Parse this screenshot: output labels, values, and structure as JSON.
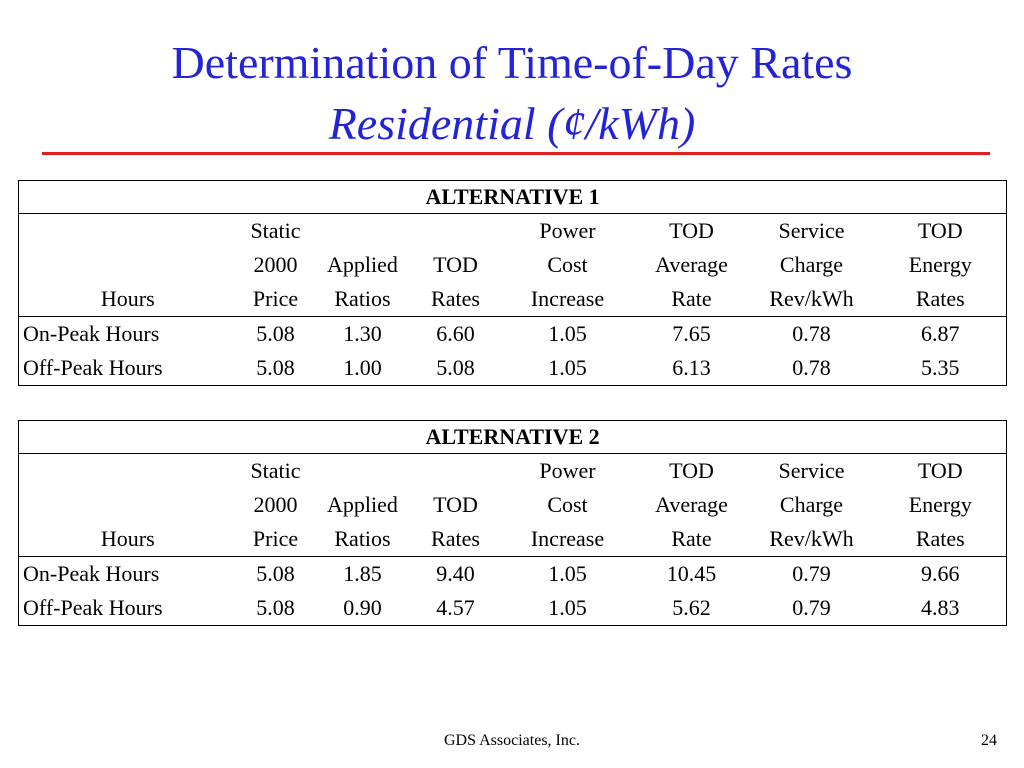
{
  "title": "Determination of Time-of-Day Rates",
  "subtitle": "Residential (¢/kWh)",
  "tables": [
    {
      "heading": "ALTERNATIVE 1",
      "header_rows": [
        [
          "",
          "Static",
          "",
          "",
          "Power",
          "TOD",
          "Service",
          "TOD"
        ],
        [
          "",
          "2000",
          "Applied",
          "TOD",
          "Cost",
          "Average",
          "Charge",
          "Energy"
        ],
        [
          "Hours",
          "Price",
          "Ratios",
          "Rates",
          "Increase",
          "Rate",
          "Rev/kWh",
          "Rates"
        ]
      ],
      "rows": [
        [
          "On-Peak Hours",
          "5.08",
          "1.30",
          "6.60",
          "1.05",
          "7.65",
          "0.78",
          "6.87"
        ],
        [
          "Off-Peak Hours",
          "5.08",
          "1.00",
          "5.08",
          "1.05",
          "6.13",
          "0.78",
          "5.35"
        ]
      ]
    },
    {
      "heading": "ALTERNATIVE 2",
      "header_rows": [
        [
          "",
          "Static",
          "",
          "",
          "Power",
          "TOD",
          "Service",
          "TOD"
        ],
        [
          "",
          "2000",
          "Applied",
          "TOD",
          "Cost",
          "Average",
          "Charge",
          "Energy"
        ],
        [
          "Hours",
          "Price",
          "Ratios",
          "Rates",
          "Increase",
          "Rate",
          "Rev/kWh",
          "Rates"
        ]
      ],
      "rows": [
        [
          "On-Peak Hours",
          "5.08",
          "1.85",
          "9.40",
          "1.05",
          "10.45",
          "0.79",
          "9.66"
        ],
        [
          "Off-Peak Hours",
          "5.08",
          "0.90",
          "4.57",
          "1.05",
          "5.62",
          "0.79",
          "4.83"
        ]
      ]
    }
  ],
  "footer": "GDS Associates, Inc.",
  "page_number": "24",
  "colors": {
    "title": "#2323d8",
    "rule": "#e02020"
  }
}
